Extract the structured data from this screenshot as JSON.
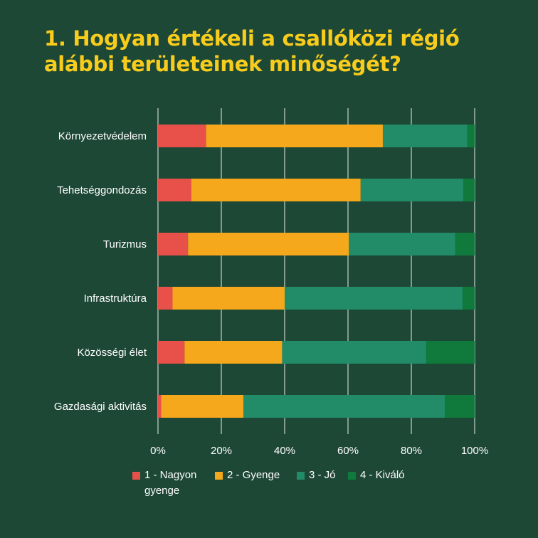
{
  "title_line1": "1. Hogyan értékeli a csallóközi régió",
  "title_line2": "alábbi területeinek minőségét?",
  "colors": {
    "background": "#1e4836",
    "title": "#f7cc1c",
    "grid": "#e6ece8",
    "text": "#ffffff"
  },
  "legend": [
    {
      "label": "1 - Nagyon",
      "label_line2": "gyenge",
      "color": "#e8504a"
    },
    {
      "label": "2 - Gyenge",
      "color": "#f5a81c"
    },
    {
      "label": "3 - Jó",
      "color": "#218c67"
    },
    {
      "label": "4 - Kiváló",
      "color": "#0f7a3c"
    }
  ],
  "chart_data": {
    "type": "bar",
    "orientation": "horizontal",
    "stacked": true,
    "percent": true,
    "categories": [
      "Környezetvédelem",
      "Tehetséggondozás",
      "Turizmus",
      "Infrastruktúra",
      "Közösségi élet",
      "Gazdasági aktivitás"
    ],
    "series": [
      {
        "name": "1 - Nagyon gyenge",
        "values": [
          15.2,
          10.5,
          9.5,
          4.6,
          8.4,
          1.0
        ]
      },
      {
        "name": "2 - Gyenge",
        "values": [
          55.8,
          53.5,
          50.8,
          35.4,
          30.8,
          26.0
        ]
      },
      {
        "name": "3 - Jó",
        "values": [
          26.7,
          32.4,
          33.6,
          56.2,
          45.5,
          63.6
        ]
      },
      {
        "name": "4 - Kiváló",
        "values": [
          2.3,
          3.6,
          6.1,
          3.8,
          15.3,
          9.4
        ]
      }
    ],
    "xlim": [
      0,
      100
    ],
    "xticks": [
      "0%",
      "20%",
      "40%",
      "60%",
      "80%",
      "100%"
    ],
    "grid": true,
    "legend_position": "bottom"
  }
}
